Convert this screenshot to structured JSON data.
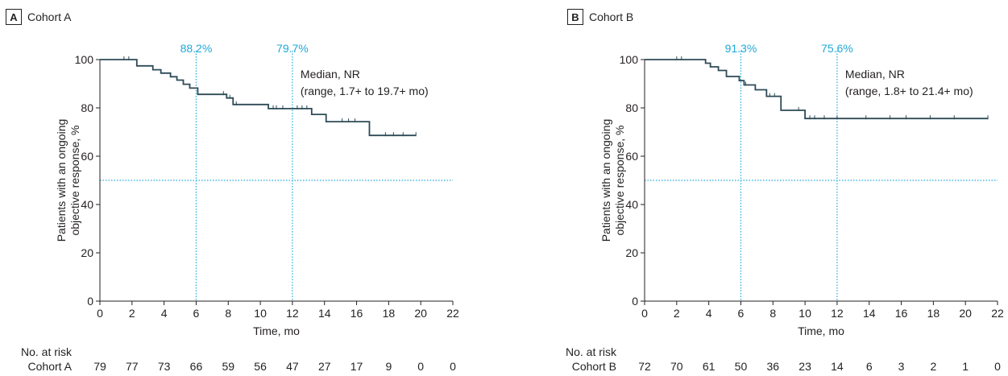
{
  "colors": {
    "curve": "#2d4a57",
    "reference": "#20a9d9",
    "axis": "#231f20",
    "text": "#231f20",
    "background": "#ffffff"
  },
  "chart_data": [
    {
      "type": "line",
      "panel_letter": "A",
      "title": "Cohort A",
      "xlabel": "Time, mo",
      "ylabel": [
        "Patients with an ongoing",
        "objective response, %"
      ],
      "xlim": [
        0,
        22
      ],
      "ylim": [
        0,
        100
      ],
      "x_ticks": [
        0,
        2,
        4,
        6,
        8,
        10,
        12,
        14,
        16,
        18,
        20,
        22
      ],
      "y_ticks": [
        0,
        20,
        40,
        60,
        80,
        100
      ],
      "grid": false,
      "median_line_y": 50,
      "reference_lines": [
        {
          "x": 6,
          "label": "88.2%"
        },
        {
          "x": 12,
          "label": "79.7%"
        }
      ],
      "annotation": [
        "Median, NR",
        "(range, 1.7+ to 19.7+ mo)"
      ],
      "km_steps": [
        [
          0,
          100
        ],
        [
          2.3,
          97.4
        ],
        [
          3.3,
          95.8
        ],
        [
          3.8,
          94.4
        ],
        [
          4.4,
          92.9
        ],
        [
          4.8,
          91.5
        ],
        [
          5.2,
          89.8
        ],
        [
          5.6,
          88.2
        ],
        [
          6.1,
          85.6
        ],
        [
          7.9,
          84.1
        ],
        [
          8.3,
          81.4
        ],
        [
          10.5,
          79.7
        ],
        [
          13.2,
          77.3
        ],
        [
          14.1,
          74.3
        ],
        [
          16.8,
          68.6
        ],
        [
          19.7,
          68.6
        ]
      ],
      "censor_marks": [
        [
          1.5,
          100
        ],
        [
          1.8,
          100
        ],
        [
          7.7,
          85.6
        ],
        [
          8.1,
          84.1
        ],
        [
          8.5,
          81.4
        ],
        [
          10.8,
          79.7
        ],
        [
          11.0,
          79.7
        ],
        [
          11.4,
          79.7
        ],
        [
          12.3,
          79.7
        ],
        [
          12.6,
          79.7
        ],
        [
          12.9,
          79.7
        ],
        [
          15.1,
          74.3
        ],
        [
          15.5,
          74.3
        ],
        [
          15.9,
          74.3
        ],
        [
          17.8,
          68.6
        ],
        [
          18.3,
          68.6
        ],
        [
          18.9,
          68.6
        ],
        [
          19.7,
          68.6
        ]
      ],
      "risk_table": {
        "title": "No. at risk",
        "label": "Cohort A",
        "values": [
          79,
          77,
          73,
          66,
          59,
          56,
          47,
          27,
          17,
          9,
          0,
          0
        ]
      }
    },
    {
      "type": "line",
      "panel_letter": "B",
      "title": "Cohort B",
      "xlabel": "Time, mo",
      "ylabel": [
        "Patients with an ongoing",
        "objective response, %"
      ],
      "xlim": [
        0,
        22
      ],
      "ylim": [
        0,
        100
      ],
      "x_ticks": [
        0,
        2,
        4,
        6,
        8,
        10,
        12,
        14,
        16,
        18,
        20,
        22
      ],
      "y_ticks": [
        0,
        20,
        40,
        60,
        80,
        100
      ],
      "grid": false,
      "median_line_y": 50,
      "reference_lines": [
        {
          "x": 6,
          "label": "91.3%"
        },
        {
          "x": 12,
          "label": "75.6%"
        }
      ],
      "annotation": [
        "Median, NR",
        "(range, 1.8+ to 21.4+ mo)"
      ],
      "km_steps": [
        [
          0,
          100
        ],
        [
          3.8,
          98.5
        ],
        [
          4.1,
          97.0
        ],
        [
          4.6,
          95.5
        ],
        [
          5.1,
          93.0
        ],
        [
          5.9,
          91.3
        ],
        [
          6.2,
          89.5
        ],
        [
          6.9,
          87.5
        ],
        [
          7.6,
          84.8
        ],
        [
          8.5,
          79.0
        ],
        [
          10.0,
          75.6
        ],
        [
          21.4,
          75.6
        ]
      ],
      "censor_marks": [
        [
          2.0,
          100
        ],
        [
          2.3,
          100
        ],
        [
          6.3,
          89.5
        ],
        [
          7.8,
          84.8
        ],
        [
          8.1,
          84.8
        ],
        [
          9.6,
          79.0
        ],
        [
          10.3,
          75.6
        ],
        [
          10.6,
          75.6
        ],
        [
          11.2,
          75.6
        ],
        [
          12.0,
          75.6
        ],
        [
          13.8,
          75.6
        ],
        [
          15.3,
          75.6
        ],
        [
          16.3,
          75.6
        ],
        [
          17.8,
          75.6
        ],
        [
          19.3,
          75.6
        ],
        [
          21.4,
          75.6
        ]
      ],
      "risk_table": {
        "title": "No. at risk",
        "label": "Cohort B",
        "values": [
          72,
          70,
          61,
          50,
          36,
          23,
          14,
          6,
          3,
          2,
          1,
          0
        ]
      }
    }
  ]
}
